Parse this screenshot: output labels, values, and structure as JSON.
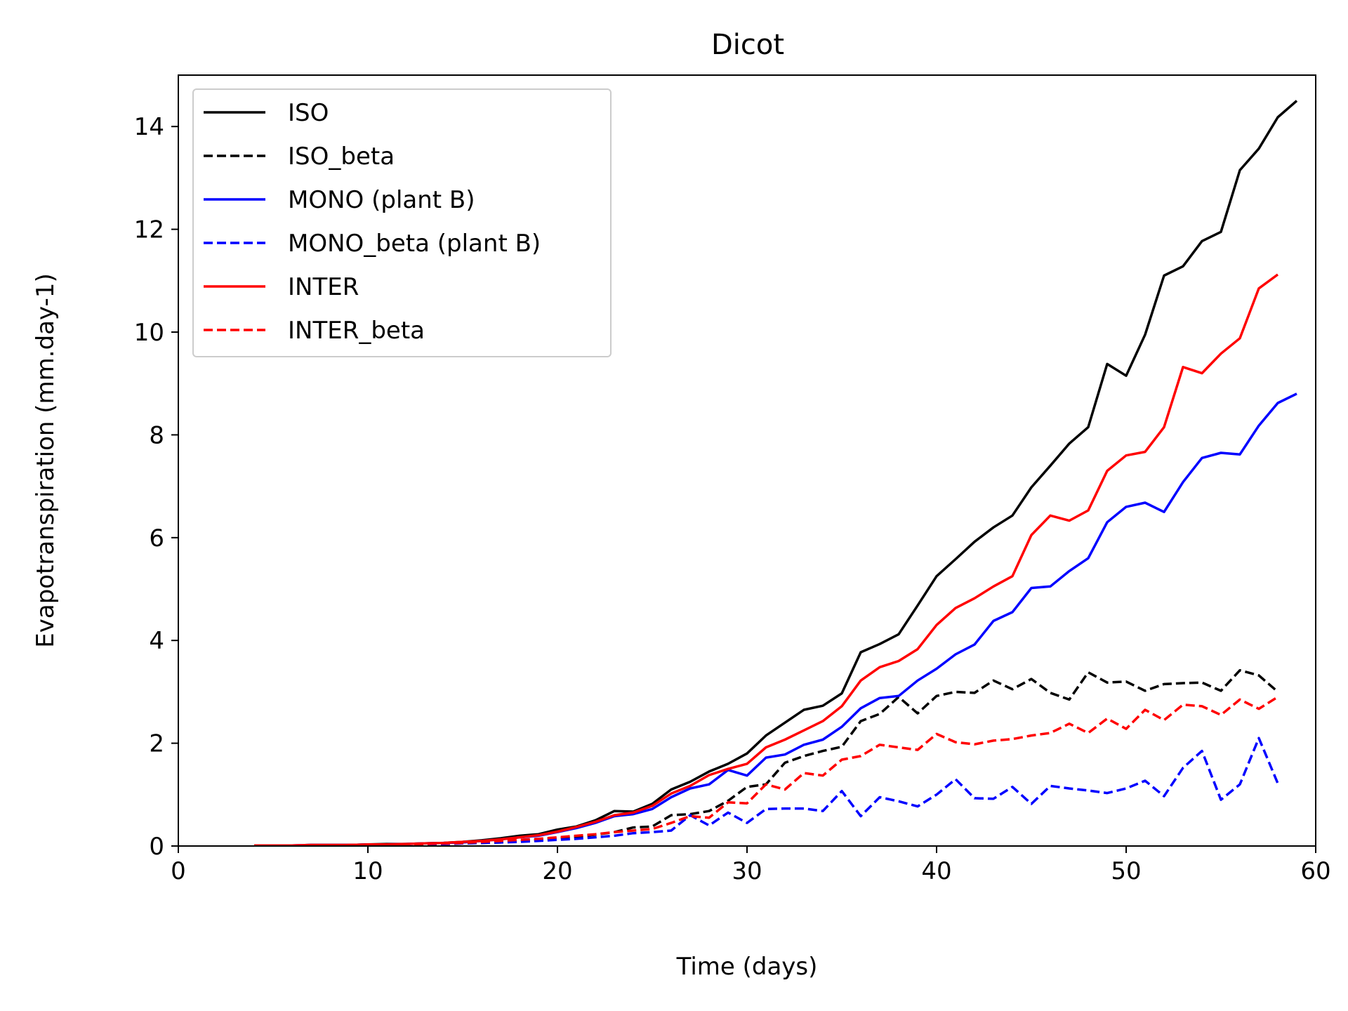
{
  "chart_data": {
    "type": "line",
    "title": "Dicot",
    "xlabel": "Time (days)",
    "ylabel": "Evapotranspiration (mm.day-1)",
    "xlim": [
      0,
      60
    ],
    "ylim": [
      0,
      15
    ],
    "xticks": [
      0,
      10,
      20,
      30,
      40,
      50,
      60
    ],
    "yticks": [
      0,
      2,
      4,
      6,
      8,
      10,
      12,
      14
    ],
    "grid": false,
    "legend_position": "top-left",
    "series": [
      {
        "name": "ISO",
        "color": "#000000",
        "dashed": false,
        "x": [
          4,
          5,
          6,
          7,
          8,
          9,
          10,
          11,
          12,
          13,
          14,
          15,
          16,
          17,
          18,
          19,
          20,
          21,
          22,
          23,
          24,
          25,
          26,
          27,
          28,
          29,
          30,
          31,
          32,
          33,
          34,
          35,
          36,
          37,
          38,
          39,
          40,
          41,
          42,
          43,
          44,
          45,
          46,
          47,
          48,
          49,
          50,
          51,
          52,
          53,
          54,
          55,
          56,
          57,
          58,
          59
        ],
        "y": [
          0.01,
          0.01,
          0.01,
          0.02,
          0.02,
          0.02,
          0.03,
          0.04,
          0.04,
          0.05,
          0.06,
          0.08,
          0.11,
          0.15,
          0.2,
          0.23,
          0.32,
          0.38,
          0.5,
          0.68,
          0.67,
          0.82,
          1.1,
          1.25,
          1.45,
          1.6,
          1.8,
          2.15,
          2.4,
          2.65,
          2.73,
          2.97,
          3.77,
          3.93,
          4.12,
          4.68,
          5.25,
          5.58,
          5.92,
          6.2,
          6.43,
          6.98,
          7.4,
          7.83,
          8.15,
          9.38,
          9.15,
          9.95,
          11.1,
          11.28,
          11.77,
          11.95,
          13.15,
          13.57,
          14.18,
          14.5
        ]
      },
      {
        "name": "ISO_beta",
        "color": "#000000",
        "dashed": true,
        "x": [
          4,
          5,
          6,
          7,
          8,
          9,
          10,
          11,
          12,
          13,
          14,
          15,
          16,
          17,
          18,
          19,
          20,
          21,
          22,
          23,
          24,
          25,
          26,
          27,
          28,
          29,
          30,
          31,
          32,
          33,
          34,
          35,
          36,
          37,
          38,
          39,
          40,
          41,
          42,
          43,
          44,
          45,
          46,
          47,
          48,
          49,
          50,
          51,
          52,
          53,
          54,
          55,
          56,
          57,
          58
        ],
        "y": [
          0.01,
          0.01,
          0.01,
          0.01,
          0.01,
          0.01,
          0.02,
          0.02,
          0.03,
          0.03,
          0.04,
          0.05,
          0.06,
          0.07,
          0.09,
          0.12,
          0.15,
          0.18,
          0.22,
          0.27,
          0.36,
          0.38,
          0.6,
          0.62,
          0.68,
          0.88,
          1.15,
          1.2,
          1.62,
          1.75,
          1.85,
          1.93,
          2.43,
          2.57,
          2.9,
          2.58,
          2.92,
          3.0,
          2.98,
          3.22,
          3.05,
          3.25,
          2.98,
          2.85,
          3.38,
          3.18,
          3.2,
          3.02,
          3.15,
          3.17,
          3.18,
          3.02,
          3.42,
          3.32,
          3.0
        ]
      },
      {
        "name": "MONO (plant B)",
        "color": "#0000ff",
        "dashed": false,
        "x": [
          4,
          5,
          6,
          7,
          8,
          9,
          10,
          11,
          12,
          13,
          14,
          15,
          16,
          17,
          18,
          19,
          20,
          21,
          22,
          23,
          24,
          25,
          26,
          27,
          28,
          29,
          30,
          31,
          32,
          33,
          34,
          35,
          36,
          37,
          38,
          39,
          40,
          41,
          42,
          43,
          44,
          45,
          46,
          47,
          48,
          49,
          50,
          51,
          52,
          53,
          54,
          55,
          56,
          57,
          58,
          59
        ],
        "y": [
          0.01,
          0.01,
          0.01,
          0.02,
          0.02,
          0.02,
          0.03,
          0.03,
          0.04,
          0.05,
          0.06,
          0.07,
          0.1,
          0.13,
          0.17,
          0.2,
          0.27,
          0.35,
          0.45,
          0.58,
          0.62,
          0.72,
          0.95,
          1.12,
          1.2,
          1.48,
          1.37,
          1.72,
          1.78,
          1.97,
          2.07,
          2.32,
          2.68,
          2.88,
          2.92,
          3.22,
          3.45,
          3.73,
          3.92,
          4.38,
          4.55,
          5.02,
          5.05,
          5.35,
          5.6,
          6.3,
          6.6,
          6.68,
          6.5,
          7.08,
          7.55,
          7.65,
          7.62,
          8.18,
          8.62,
          8.8
        ]
      },
      {
        "name": "MONO_beta (plant B)",
        "color": "#0000ff",
        "dashed": true,
        "x": [
          4,
          5,
          6,
          7,
          8,
          9,
          10,
          11,
          12,
          13,
          14,
          15,
          16,
          17,
          18,
          19,
          20,
          21,
          22,
          23,
          24,
          25,
          26,
          27,
          28,
          29,
          30,
          31,
          32,
          33,
          34,
          35,
          36,
          37,
          38,
          39,
          40,
          41,
          42,
          43,
          44,
          45,
          46,
          47,
          48,
          49,
          50,
          51,
          52,
          53,
          54,
          55,
          56,
          57,
          58
        ],
        "y": [
          0.01,
          0.01,
          0.01,
          0.01,
          0.01,
          0.01,
          0.02,
          0.02,
          0.02,
          0.03,
          0.04,
          0.05,
          0.06,
          0.07,
          0.08,
          0.1,
          0.12,
          0.14,
          0.17,
          0.2,
          0.25,
          0.27,
          0.3,
          0.6,
          0.4,
          0.65,
          0.45,
          0.72,
          0.73,
          0.73,
          0.68,
          1.07,
          0.58,
          0.95,
          0.87,
          0.77,
          1.0,
          1.3,
          0.93,
          0.92,
          1.15,
          0.82,
          1.17,
          1.12,
          1.08,
          1.03,
          1.12,
          1.27,
          0.97,
          1.52,
          1.85,
          0.9,
          1.2,
          2.1,
          1.22
        ]
      },
      {
        "name": "INTER",
        "color": "#ff0000",
        "dashed": false,
        "x": [
          4,
          5,
          6,
          7,
          8,
          9,
          10,
          11,
          12,
          13,
          14,
          15,
          16,
          17,
          18,
          19,
          20,
          21,
          22,
          23,
          24,
          25,
          26,
          27,
          28,
          29,
          30,
          31,
          32,
          33,
          34,
          35,
          36,
          37,
          38,
          39,
          40,
          41,
          42,
          43,
          44,
          45,
          46,
          47,
          48,
          49,
          50,
          51,
          52,
          53,
          54,
          55,
          56,
          57,
          58
        ],
        "y": [
          0.01,
          0.01,
          0.01,
          0.02,
          0.02,
          0.02,
          0.03,
          0.03,
          0.04,
          0.05,
          0.06,
          0.08,
          0.1,
          0.13,
          0.17,
          0.21,
          0.28,
          0.37,
          0.47,
          0.6,
          0.65,
          0.78,
          1.02,
          1.17,
          1.38,
          1.5,
          1.6,
          1.92,
          2.07,
          2.25,
          2.43,
          2.72,
          3.22,
          3.48,
          3.6,
          3.83,
          4.3,
          4.63,
          4.82,
          5.05,
          5.25,
          6.05,
          6.43,
          6.33,
          6.53,
          7.3,
          7.6,
          7.67,
          8.15,
          9.32,
          9.2,
          9.58,
          9.88,
          10.85,
          11.12
        ]
      },
      {
        "name": "INTER_beta",
        "color": "#ff0000",
        "dashed": true,
        "x": [
          4,
          5,
          6,
          7,
          8,
          9,
          10,
          11,
          12,
          13,
          14,
          15,
          16,
          17,
          18,
          19,
          20,
          21,
          22,
          23,
          24,
          25,
          26,
          27,
          28,
          29,
          30,
          31,
          32,
          33,
          34,
          35,
          36,
          37,
          38,
          39,
          40,
          41,
          42,
          43,
          44,
          45,
          46,
          47,
          48,
          49,
          50,
          51,
          52,
          53,
          54,
          55,
          56,
          57,
          58
        ],
        "y": [
          0.01,
          0.01,
          0.01,
          0.01,
          0.01,
          0.02,
          0.02,
          0.03,
          0.03,
          0.04,
          0.05,
          0.06,
          0.08,
          0.1,
          0.12,
          0.14,
          0.17,
          0.2,
          0.23,
          0.27,
          0.3,
          0.33,
          0.45,
          0.58,
          0.55,
          0.85,
          0.83,
          1.2,
          1.1,
          1.42,
          1.37,
          1.68,
          1.75,
          1.97,
          1.92,
          1.87,
          2.18,
          2.02,
          1.98,
          2.05,
          2.08,
          2.15,
          2.2,
          2.38,
          2.2,
          2.48,
          2.28,
          2.65,
          2.45,
          2.75,
          2.72,
          2.55,
          2.85,
          2.67,
          2.9
        ]
      }
    ]
  }
}
